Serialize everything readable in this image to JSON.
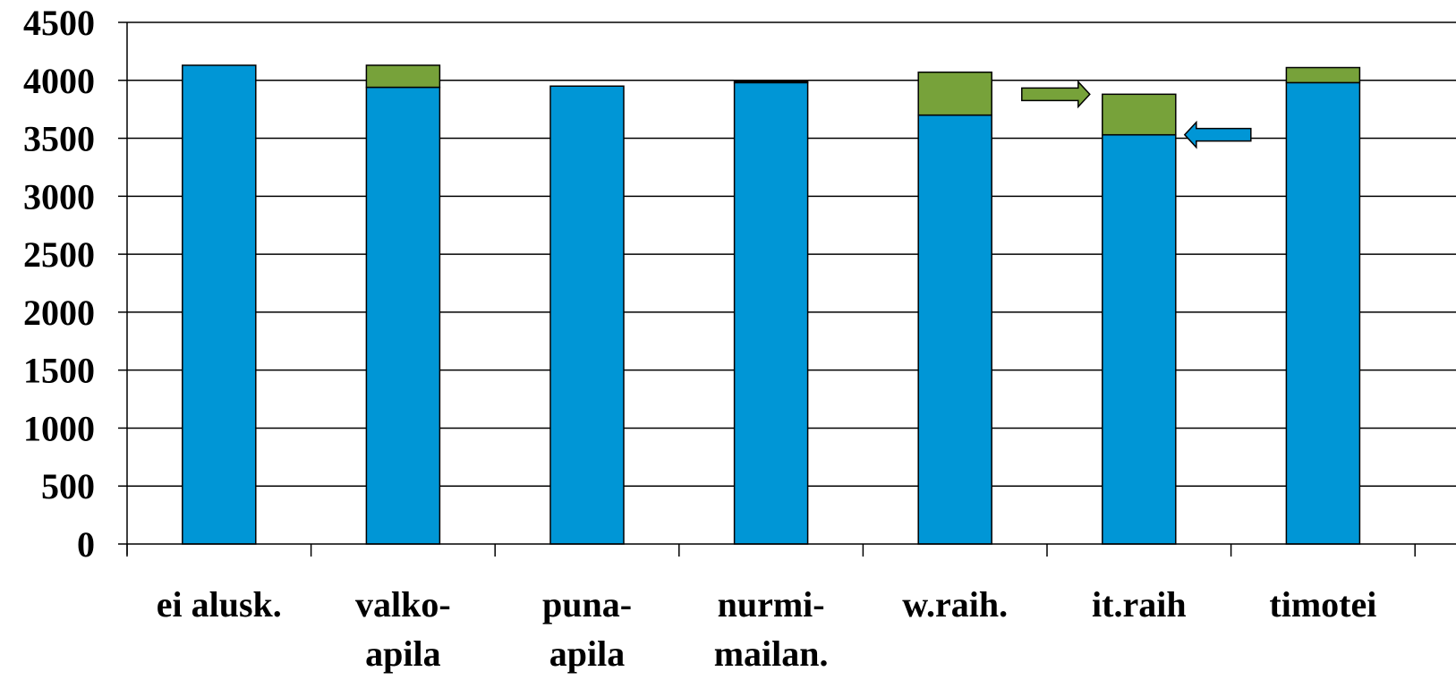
{
  "chart_data": {
    "type": "bar",
    "stacked": true,
    "categories": [
      [
        "ei alusk."
      ],
      [
        "valko-",
        "apila"
      ],
      [
        "puna-",
        "apila"
      ],
      [
        "nurmi-",
        "mailan."
      ],
      [
        "w.raih."
      ],
      [
        "it.raih"
      ],
      [
        "timotei"
      ]
    ],
    "series": [
      {
        "values": [
          4130,
          3940,
          3950,
          3980,
          3700,
          3530,
          3980
        ]
      },
      {
        "values": [
          0,
          190,
          0,
          10,
          370,
          350,
          130
        ]
      }
    ],
    "ylim": [
      0,
      4500
    ],
    "yticks": [
      0,
      500,
      1000,
      1500,
      2000,
      2500,
      3000,
      3500,
      4000,
      4500
    ],
    "grid": true,
    "annotations": [
      {
        "type": "arrow",
        "direction": "right",
        "color": "#77a23a",
        "target_category": "it.raih",
        "target_value": 3880
      },
      {
        "type": "arrow",
        "direction": "left",
        "color": "#0096d6",
        "target_category": "it.raih",
        "target_value": 3530
      }
    ],
    "colors": {
      "base": "#0096d6",
      "top": "#77a23a",
      "title": "#0096d6"
    }
  }
}
